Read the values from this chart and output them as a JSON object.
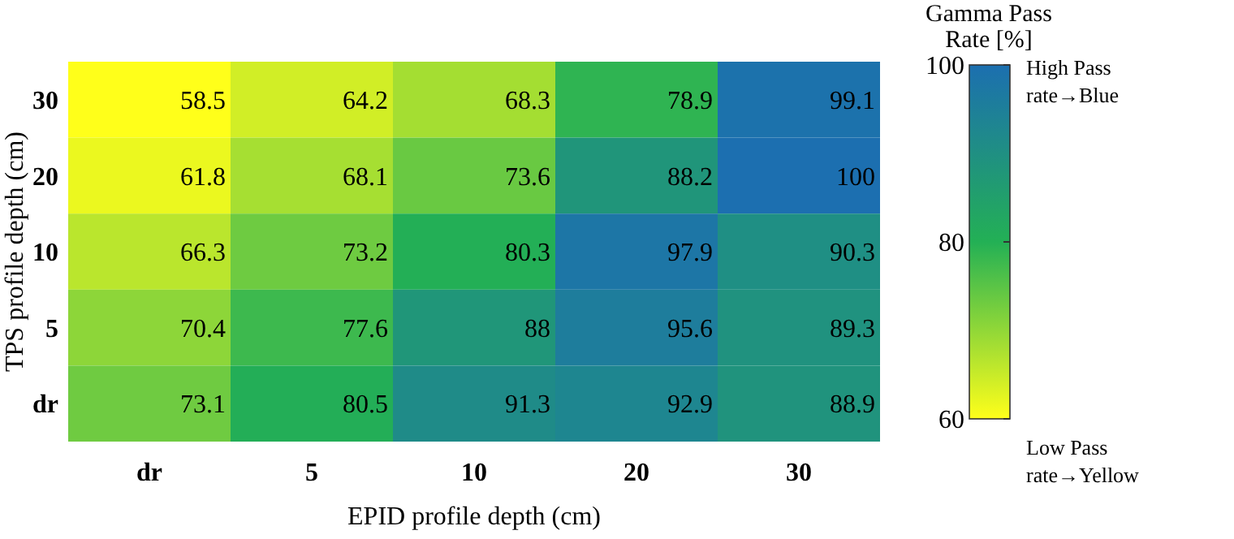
{
  "chart_data": {
    "type": "heatmap",
    "xlabel": "EPID profile depth (cm)",
    "ylabel": "TPS profile depth (cm)",
    "clabel": "Gamma Pass Rate [%]",
    "categories": [
      "dr",
      "5",
      "10",
      "20",
      "30"
    ],
    "y_categories": [
      "30",
      "20",
      "10",
      "5",
      "dr"
    ],
    "cells": [
      [
        58.5,
        64.2,
        68.3,
        78.9,
        99.1
      ],
      [
        61.8,
        68.1,
        73.6,
        88.2,
        100
      ],
      [
        66.3,
        73.2,
        80.3,
        97.9,
        90.3
      ],
      [
        70.4,
        77.6,
        88,
        95.6,
        89.3
      ],
      [
        73.1,
        80.5,
        91.3,
        92.9,
        88.9
      ]
    ],
    "data_labels": true,
    "clim": [
      60,
      100
    ],
    "cticks": [
      60,
      80,
      100
    ],
    "annotations": [
      "High Pass rate→Blue",
      "Low Pass rate→Yellow"
    ]
  }
}
